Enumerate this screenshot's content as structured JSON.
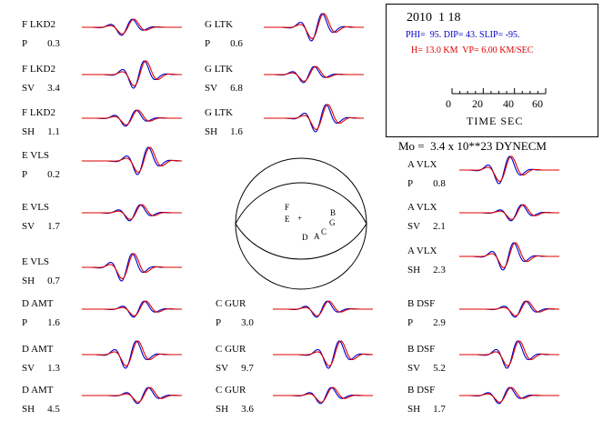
{
  "colors": {
    "observed": "#0000cc",
    "synthetic": "#dd0000",
    "ink": "#000000"
  },
  "info": {
    "date": "2010  1 18",
    "mechanism": "PHI=  95. DIP= 43. SLIP= -95.",
    "depth": "H= 13.0 KM  VP= 6.00 KM/SEC",
    "scale_ticks": [
      "0",
      "20",
      "40",
      "60"
    ],
    "time_label": "TIME  SEC"
  },
  "moment": "Mo =  3.4 x 10**23 DYNECM",
  "beachball": {
    "center_mark": "+",
    "stations": [
      {
        "code": "F"
      },
      {
        "code": "E"
      },
      {
        "code": "B"
      },
      {
        "code": "G"
      },
      {
        "code": "D"
      },
      {
        "code": "A"
      },
      {
        "code": "C"
      }
    ]
  },
  "traces": [
    {
      "station": "F LKD2",
      "comp": "P",
      "amp": "0.3"
    },
    {
      "station": "F LKD2",
      "comp": "SV",
      "amp": "3.4"
    },
    {
      "station": "F LKD2",
      "comp": "SH",
      "amp": "1.1"
    },
    {
      "station": "E VLS",
      "comp": "P",
      "amp": "0.2"
    },
    {
      "station": "E VLS",
      "comp": "SV",
      "amp": "1.7"
    },
    {
      "station": "E VLS",
      "comp": "SH",
      "amp": "0.7"
    },
    {
      "station": "D AMT",
      "comp": "P",
      "amp": "1.6"
    },
    {
      "station": "D AMT",
      "comp": "SV",
      "amp": "1.3"
    },
    {
      "station": "D AMT",
      "comp": "SH",
      "amp": "4.5"
    },
    {
      "station": "G LTK",
      "comp": "P",
      "amp": "0.6"
    },
    {
      "station": "G LTK",
      "comp": "SV",
      "amp": "6.8"
    },
    {
      "station": "G LTK",
      "comp": "SH",
      "amp": "1.6"
    },
    {
      "station": "C GUR",
      "comp": "P",
      "amp": "3.0"
    },
    {
      "station": "C GUR",
      "comp": "SV",
      "amp": "9.7"
    },
    {
      "station": "C GUR",
      "comp": "SH",
      "amp": "3.6"
    },
    {
      "station": "A VLX",
      "comp": "P",
      "amp": "0.8"
    },
    {
      "station": "A VLX",
      "comp": "SV",
      "amp": "2.1"
    },
    {
      "station": "A VLX",
      "comp": "SH",
      "amp": "2.3"
    },
    {
      "station": "B DSF",
      "comp": "P",
      "amp": "2.9"
    },
    {
      "station": "B DSF",
      "comp": "SV",
      "amp": "5.2"
    },
    {
      "station": "B DSF",
      "comp": "SH",
      "amp": "1.7"
    }
  ]
}
